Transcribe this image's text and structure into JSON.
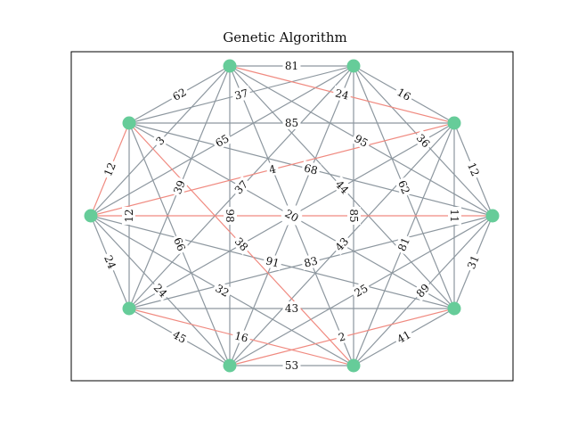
{
  "title": "Genetic Algorithm",
  "colors": {
    "node": "#66cc99",
    "edge": "#8d979f",
    "path_edge": "#f08a80",
    "frame": "#000000"
  },
  "nodes": [
    {
      "id": 0
    },
    {
      "id": 1
    },
    {
      "id": 2
    },
    {
      "id": 3
    },
    {
      "id": 4
    },
    {
      "id": 5
    },
    {
      "id": 6
    },
    {
      "id": 7
    },
    {
      "id": 8
    },
    {
      "id": 9
    }
  ],
  "edges": [
    {
      "a": 0,
      "b": 1,
      "w": "81",
      "path": false
    },
    {
      "a": 0,
      "b": 2,
      "w": "24",
      "path": true
    },
    {
      "a": 0,
      "b": 3,
      "w": "95",
      "path": false
    },
    {
      "a": 0,
      "b": 4,
      "w": "44",
      "path": false
    },
    {
      "a": 0,
      "b": 5,
      "w": "57",
      "path": false
    },
    {
      "a": 0,
      "b": 6,
      "w": "98",
      "path": false
    },
    {
      "a": 0,
      "b": 7,
      "w": "39",
      "path": false
    },
    {
      "a": 0,
      "b": 8,
      "w": "3",
      "path": false
    },
    {
      "a": 0,
      "b": 9,
      "w": "62",
      "path": false
    },
    {
      "a": 1,
      "b": 2,
      "w": "16",
      "path": false
    },
    {
      "a": 1,
      "b": 3,
      "w": "36",
      "path": false
    },
    {
      "a": 1,
      "b": 4,
      "w": "62",
      "path": false
    },
    {
      "a": 1,
      "b": 5,
      "w": "85",
      "path": false
    },
    {
      "a": 1,
      "b": 6,
      "w": "92",
      "path": false
    },
    {
      "a": 1,
      "b": 7,
      "w": "37",
      "path": false
    },
    {
      "a": 1,
      "b": 8,
      "w": "65",
      "path": false
    },
    {
      "a": 1,
      "b": 9,
      "w": "37",
      "path": false
    },
    {
      "a": 2,
      "b": 3,
      "w": "12",
      "path": false
    },
    {
      "a": 2,
      "b": 4,
      "w": "11",
      "path": false
    },
    {
      "a": 2,
      "b": 5,
      "w": "81",
      "path": false
    },
    {
      "a": 2,
      "b": 6,
      "w": "43",
      "path": false
    },
    {
      "a": 2,
      "b": 7,
      "w": "67",
      "path": false
    },
    {
      "a": 2,
      "b": 8,
      "w": "4",
      "path": true
    },
    {
      "a": 2,
      "b": 9,
      "w": "85",
      "path": false
    },
    {
      "a": 3,
      "b": 4,
      "w": "31",
      "path": false
    },
    {
      "a": 3,
      "b": 5,
      "w": "89",
      "path": false
    },
    {
      "a": 3,
      "b": 6,
      "w": "25",
      "path": false
    },
    {
      "a": 3,
      "b": 7,
      "w": "83",
      "path": false
    },
    {
      "a": 3,
      "b": 8,
      "w": "98",
      "path": true
    },
    {
      "a": 3,
      "b": 9,
      "w": "68",
      "path": false
    },
    {
      "a": 4,
      "b": 5,
      "w": "41",
      "path": false
    },
    {
      "a": 4,
      "b": 6,
      "w": "2",
      "path": true
    },
    {
      "a": 4,
      "b": 7,
      "w": "43",
      "path": false
    },
    {
      "a": 4,
      "b": 8,
      "w": "91",
      "path": false
    },
    {
      "a": 4,
      "b": 9,
      "w": "20",
      "path": false
    },
    {
      "a": 5,
      "b": 6,
      "w": "53",
      "path": false
    },
    {
      "a": 5,
      "b": 7,
      "w": "16",
      "path": true
    },
    {
      "a": 5,
      "b": 8,
      "w": "32",
      "path": false
    },
    {
      "a": 5,
      "b": 9,
      "w": "38",
      "path": true
    },
    {
      "a": 6,
      "b": 7,
      "w": "45",
      "path": false
    },
    {
      "a": 6,
      "b": 8,
      "w": "24",
      "path": false
    },
    {
      "a": 6,
      "b": 9,
      "w": "66",
      "path": false
    },
    {
      "a": 7,
      "b": 8,
      "w": "24",
      "path": false
    },
    {
      "a": 7,
      "b": 9,
      "w": "12",
      "path": false
    },
    {
      "a": 8,
      "b": 9,
      "w": "12",
      "path": true
    }
  ]
}
